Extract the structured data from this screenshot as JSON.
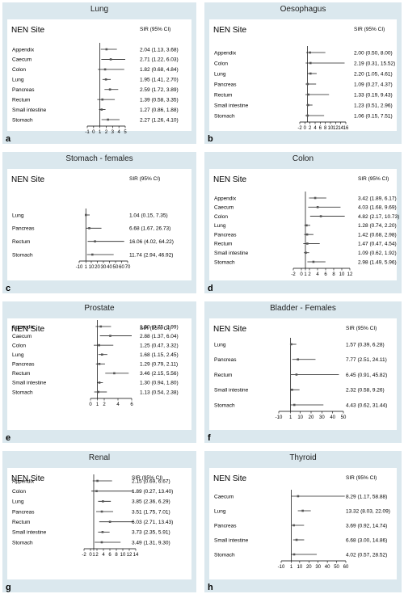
{
  "chart_data": [
    {
      "type": "forest",
      "panel_label": "a",
      "title": "Lung",
      "header_left": "NEN Site",
      "header_right": "SIR (95% CI)",
      "x_ticks": [
        -1,
        0,
        1,
        2,
        3,
        4,
        5
      ],
      "ref_line": 1,
      "rows": [
        {
          "label": "Appendix",
          "sir": 2.04,
          "lo": 1.13,
          "hi": 3.68,
          "text": "2.04 (1.13, 3.68)"
        },
        {
          "label": "Caecum",
          "sir": 2.71,
          "lo": 1.22,
          "hi": 6.03,
          "text": "2.71 (1.22, 6.03)"
        },
        {
          "label": "Colon",
          "sir": 1.82,
          "lo": 0.68,
          "hi": 4.84,
          "text": "1.82 (0.68, 4.84)"
        },
        {
          "label": "Lung",
          "sir": 1.95,
          "lo": 1.41,
          "hi": 2.7,
          "text": "1.95 (1.41, 2.70)"
        },
        {
          "label": "Pancreas",
          "sir": 2.59,
          "lo": 1.72,
          "hi": 3.89,
          "text": "2.59 (1.72, 3.89)"
        },
        {
          "label": "Rectum",
          "sir": 1.39,
          "lo": 0.58,
          "hi": 3.35,
          "text": "1.39 (0.58, 3.35)"
        },
        {
          "label": "Small intestine",
          "sir": 1.27,
          "lo": 0.86,
          "hi": 1.88,
          "text": "1.27 (0.86, 1.88)"
        },
        {
          "label": "Stomach",
          "sir": 2.27,
          "lo": 1.26,
          "hi": 4.1,
          "text": "2.27 (1.26, 4.10)"
        }
      ]
    },
    {
      "type": "forest",
      "panel_label": "b",
      "title": "Oesophagus",
      "header_left": "NEN Site",
      "header_right": "SIR (95% CI)",
      "x_ticks": [
        -2,
        0,
        2,
        4,
        6,
        8,
        10,
        12,
        14,
        16
      ],
      "tick_text": [
        "-2",
        "0",
        "2",
        "4",
        "6",
        "8",
        "10",
        "12",
        "14",
        "16"
      ],
      "ref_line": 1,
      "rows": [
        {
          "label": "Appendix",
          "sir": 2.0,
          "lo": 0.5,
          "hi": 8.0,
          "text": "2.00 (0.50, 8.00)"
        },
        {
          "label": "Colon",
          "sir": 2.19,
          "lo": 0.31,
          "hi": 15.52,
          "text": "2.19 (0.31, 15.52)"
        },
        {
          "label": "Lung",
          "sir": 2.2,
          "lo": 1.05,
          "hi": 4.61,
          "text": "2.20 (1.05, 4.61)"
        },
        {
          "label": "Pancreas",
          "sir": 1.09,
          "lo": 0.27,
          "hi": 4.37,
          "text": "1.09 (0.27, 4.37)"
        },
        {
          "label": "Rectum",
          "sir": 1.33,
          "lo": 0.19,
          "hi": 9.43,
          "text": "1.33 (0.19, 9.43)"
        },
        {
          "label": "Small intestine",
          "sir": 1.23,
          "lo": 0.51,
          "hi": 2.96,
          "text": "1.23 (0.51, 2.96)"
        },
        {
          "label": "Stomach",
          "sir": 1.06,
          "lo": 0.15,
          "hi": 7.51,
          "text": "1.06 (0.15, 7.51)"
        }
      ]
    },
    {
      "type": "forest",
      "panel_label": "c",
      "title": "Stomach - females",
      "header_left": "NEN Site",
      "header_right": "SIR (95% CI)",
      "x_ticks": [
        -10,
        1,
        10,
        20,
        30,
        40,
        50,
        60,
        70
      ],
      "ref_line": 1,
      "rows": [
        {
          "label": "Lung",
          "sir": 1.04,
          "lo": 0.15,
          "hi": 7.35,
          "text": "1.04 (0.15, 7.35)"
        },
        {
          "label": "Pancreas",
          "sir": 6.68,
          "lo": 1.67,
          "hi": 26.73,
          "text": "6.68 (1.67, 26.73)"
        },
        {
          "label": "Rectum",
          "sir": 16.06,
          "lo": 4.02,
          "hi": 64.22,
          "text": "16.06 (4.02, 64.22)"
        },
        {
          "label": "Stomach",
          "sir": 11.74,
          "lo": 2.94,
          "hi": 46.92,
          "text": "11.74 (2.94, 46.92)"
        }
      ]
    },
    {
      "type": "forest",
      "panel_label": "d",
      "title": "Colon",
      "header_left": "NEN Site",
      "header_right": "SIR (95% CI)",
      "x_ticks": [
        -2,
        0,
        1,
        2,
        4,
        6,
        8,
        10,
        12
      ],
      "ref_line": 1,
      "rows": [
        {
          "label": "Appendix",
          "sir": 3.42,
          "lo": 1.89,
          "hi": 6.17,
          "text": "3.42 (1.89, 6.17)"
        },
        {
          "label": "Caecum",
          "sir": 4.03,
          "lo": 1.68,
          "hi": 9.69,
          "text": "4.03 (1.68, 9.69)"
        },
        {
          "label": "Colon",
          "sir": 4.82,
          "lo": 2.17,
          "hi": 10.73,
          "text": "4.82 (2.17, 10.73)"
        },
        {
          "label": "Lung",
          "sir": 1.28,
          "lo": 0.74,
          "hi": 2.2,
          "text": "1.28 (0.74, 2.20)"
        },
        {
          "label": "Pancreas",
          "sir": 1.42,
          "lo": 0.68,
          "hi": 2.98,
          "text": "1.42 (0.68, 2.98)"
        },
        {
          "label": "Rectum",
          "sir": 1.47,
          "lo": 0.47,
          "hi": 4.54,
          "text": "1.47 (0.47, 4.54)"
        },
        {
          "label": "Small intestine",
          "sir": 1.09,
          "lo": 0.62,
          "hi": 1.92,
          "text": "1.09 (0.62, 1.92)"
        },
        {
          "label": "Stomach",
          "sir": 2.98,
          "lo": 1.49,
          "hi": 5.96,
          "text": "2.98 (1.49, 5.96)"
        }
      ]
    },
    {
      "type": "forest",
      "panel_label": "e",
      "title": "Prostate",
      "header_left": "NEN Site",
      "header_right": "SIR (95% CI)",
      "x_ticks": [
        0,
        1,
        2,
        4,
        6
      ],
      "ref_line": 1,
      "rows": [
        {
          "label": "Appendix",
          "sir": 1.5,
          "lo": 0.75,
          "hi": 2.99,
          "text": "1.50 (0.75, 2.99)"
        },
        {
          "label": "Caecum",
          "sir": 2.88,
          "lo": 1.37,
          "hi": 6.04,
          "text": "2.88 (1.37, 6.04)"
        },
        {
          "label": "Colon",
          "sir": 1.25,
          "lo": 0.47,
          "hi": 3.32,
          "text": "1.25 (0.47, 3.32)"
        },
        {
          "label": "Lung",
          "sir": 1.68,
          "lo": 1.15,
          "hi": 2.45,
          "text": "1.68 (1.15, 2.45)"
        },
        {
          "label": "Pancreas",
          "sir": 1.29,
          "lo": 0.79,
          "hi": 2.11,
          "text": "1.29 (0.79, 2.11)"
        },
        {
          "label": "Rectum",
          "sir": 3.46,
          "lo": 2.15,
          "hi": 5.56,
          "text": "3.46 (2.15, 5.56)"
        },
        {
          "label": "Small intestine",
          "sir": 1.3,
          "lo": 0.94,
          "hi": 1.8,
          "text": "1.30 (0.94, 1.80)"
        },
        {
          "label": "Stomach",
          "sir": 1.13,
          "lo": 0.54,
          "hi": 2.38,
          "text": "1.13 (0.54, 2.38)"
        }
      ]
    },
    {
      "type": "forest",
      "panel_label": "f",
      "title": "Bladder - Females",
      "header_left": "NEN Site",
      "header_right": "SIR (95% CI)",
      "x_ticks": [
        -10,
        1,
        10,
        20,
        30,
        40,
        50
      ],
      "ref_line": 1,
      "rows": [
        {
          "label": "Lung",
          "sir": 1.57,
          "lo": 0.39,
          "hi": 6.28,
          "text": "1.57 (0.39, 6.28)"
        },
        {
          "label": "Pancreas",
          "sir": 7.77,
          "lo": 2.51,
          "hi": 24.11,
          "text": "7.77 (2.51, 24.11)"
        },
        {
          "label": "Rectum",
          "sir": 6.45,
          "lo": 0.91,
          "hi": 45.82,
          "text": "6.45 (0.91, 45.82)"
        },
        {
          "label": "Small intestine",
          "sir": 2.32,
          "lo": 0.58,
          "hi": 9.26,
          "text": "2.32 (0.58, 9.26)"
        },
        {
          "label": "Stomach",
          "sir": 4.43,
          "lo": 0.62,
          "hi": 31.44,
          "text": "4.43 (0.62, 31.44)"
        }
      ]
    },
    {
      "type": "forest",
      "panel_label": "g",
      "title": "Renal",
      "header_left": "NEN Site",
      "header_right": "SIR (95% CI)",
      "x_ticks": [
        -2,
        0,
        1,
        2,
        4,
        6,
        8,
        10,
        12,
        14
      ],
      "ref_line": 1,
      "rows": [
        {
          "label": "Appendix",
          "sir": 2.15,
          "lo": 0.69,
          "hi": 6.67,
          "text": "2.15 (0.69, 6.67)"
        },
        {
          "label": "Colon",
          "sir": 1.89,
          "lo": 0.27,
          "hi": 13.4,
          "text": "1.89 (0.27, 13.40)"
        },
        {
          "label": "Lung",
          "sir": 3.85,
          "lo": 2.36,
          "hi": 6.29,
          "text": "3.85 (2.36, 6.29)"
        },
        {
          "label": "Pancreas",
          "sir": 3.51,
          "lo": 1.75,
          "hi": 7.01,
          "text": "3.51 (1.75, 7.01)"
        },
        {
          "label": "Rectum",
          "sir": 6.03,
          "lo": 2.71,
          "hi": 13.43,
          "text": "6.03 (2.71, 13.43)"
        },
        {
          "label": "Small intestine",
          "sir": 3.73,
          "lo": 2.35,
          "hi": 5.91,
          "text": "3.73 (2.35, 5.91)"
        },
        {
          "label": "Stomach",
          "sir": 3.49,
          "lo": 1.31,
          "hi": 9.3,
          "text": "3.49 (1.31, 9.30)"
        }
      ]
    },
    {
      "type": "forest",
      "panel_label": "h",
      "title": "Thyroid",
      "header_left": "NEN Site",
      "header_right": "SIR (95% CI)",
      "x_ticks": [
        -10,
        1,
        10,
        20,
        30,
        40,
        50,
        60
      ],
      "ref_line": 1,
      "rows": [
        {
          "label": "Caecum",
          "sir": 8.29,
          "lo": 1.17,
          "hi": 58.88,
          "text": "8.29 (1.17, 58.88)"
        },
        {
          "label": "Lung",
          "sir": 13.32,
          "lo": 8.03,
          "hi": 22.09,
          "text": "13.32 (8.03, 22.09)"
        },
        {
          "label": "Pancreas",
          "sir": 3.69,
          "lo": 0.92,
          "hi": 14.74,
          "text": "3.69 (0.92, 14.74)"
        },
        {
          "label": "Small intestine",
          "sir": 6.68,
          "lo": 3.0,
          "hi": 14.86,
          "text": "6.68 (3.00, 14.86)"
        },
        {
          "label": "Stomach",
          "sir": 4.02,
          "lo": 0.57,
          "hi": 28.52,
          "text": "4.02 (0.57, 28.52)"
        }
      ]
    }
  ]
}
